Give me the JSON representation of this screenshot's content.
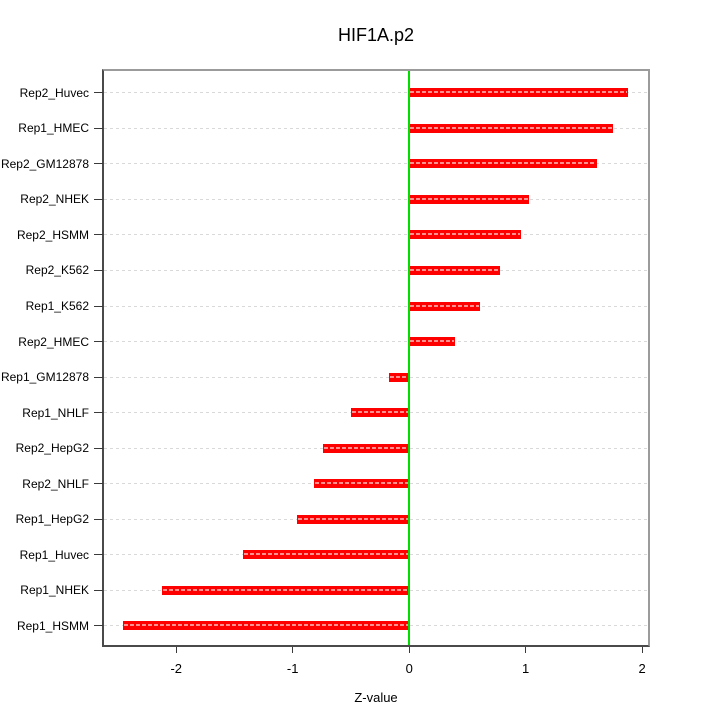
{
  "chart_data": {
    "type": "bar",
    "orientation": "horizontal",
    "title": "HIF1A.p2",
    "xlabel": "Z-value",
    "ylabel": "",
    "categories": [
      "Rep2_Huvec",
      "Rep1_HMEC",
      "Rep2_GM12878",
      "Rep2_NHEK",
      "Rep2_HSMM",
      "Rep2_K562",
      "Rep1_K562",
      "Rep2_HMEC",
      "Rep1_GM12878",
      "Rep1_NHLF",
      "Rep2_HepG2",
      "Rep2_NHLF",
      "Rep1_HepG2",
      "Rep1_Huvec",
      "Rep1_NHEK",
      "Rep1_HSMM"
    ],
    "values": [
      1.88,
      1.75,
      1.61,
      1.03,
      0.96,
      0.78,
      0.61,
      0.39,
      -0.17,
      -0.5,
      -0.74,
      -0.82,
      -0.96,
      -1.43,
      -2.12,
      -2.46
    ],
    "xticks": [
      -2,
      -1,
      0,
      1,
      2
    ],
    "xtick_labels": [
      "-2",
      "-1",
      "0",
      "1",
      "2"
    ],
    "xlim": [
      -2.62,
      2.05
    ],
    "grid": "dotted horizontal row guides",
    "legend": "none",
    "colors": {
      "bar": "#ff0000",
      "bar_inner_dash": "#ff9090",
      "zero_line": "#00de00",
      "row_guide": "#d9d9d9",
      "axis_text": "#000000"
    }
  }
}
